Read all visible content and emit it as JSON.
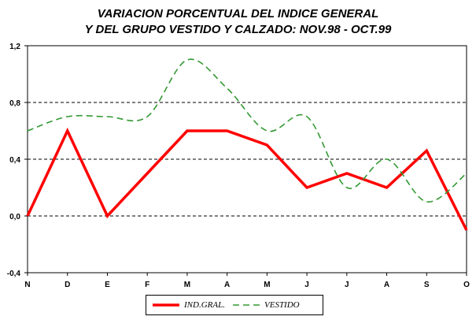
{
  "chart_data": {
    "type": "line",
    "title": [
      "VARIACION PORCENTUAL DEL INDICE GENERAL",
      "Y DEL GRUPO VESTIDO Y CALZADO: NOV.98 - OCT.99"
    ],
    "categories": [
      "N",
      "D",
      "E",
      "F",
      "M",
      "A",
      "M",
      "J",
      "J",
      "A",
      "S",
      "O"
    ],
    "yticks": [
      "1,2",
      "0,8",
      "0,4",
      "0,0",
      "-0,4"
    ],
    "ytick_values": [
      1.2,
      0.8,
      0.4,
      0.0,
      -0.4
    ],
    "ylim": [
      -0.4,
      1.2
    ],
    "grid": "dashed horizontal at 0,0 / 0,4 / 0,8",
    "legend_placement": "bottom-center",
    "series": [
      {
        "name": "IND.GRAL.",
        "color": "#ff0000",
        "style": "solid",
        "values": [
          0.0,
          0.6,
          0.0,
          0.3,
          0.6,
          0.6,
          0.5,
          0.2,
          0.3,
          0.2,
          0.46,
          -0.1
        ]
      },
      {
        "name": "VESTIDO",
        "color": "#339933",
        "style": "dashed-smooth",
        "values": [
          0.6,
          0.7,
          0.7,
          0.7,
          1.1,
          0.9,
          0.6,
          0.7,
          0.2,
          0.4,
          0.1,
          0.3
        ]
      }
    ]
  }
}
